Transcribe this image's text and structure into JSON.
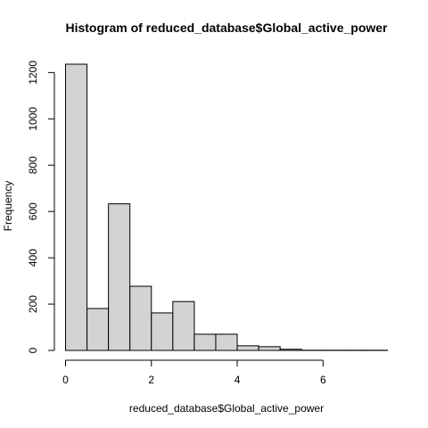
{
  "chart_data": {
    "type": "bar",
    "title": "Histogram of reduced_database$Global_active_power",
    "xlabel": "reduced_database$Global_active_power",
    "ylabel": "Frequency",
    "bins": [
      {
        "start": 0.0,
        "end": 0.5,
        "count": 1236
      },
      {
        "start": 0.5,
        "end": 1.0,
        "count": 181
      },
      {
        "start": 1.0,
        "end": 1.5,
        "count": 633
      },
      {
        "start": 1.5,
        "end": 2.0,
        "count": 277
      },
      {
        "start": 2.0,
        "end": 2.5,
        "count": 162
      },
      {
        "start": 2.5,
        "end": 3.0,
        "count": 211
      },
      {
        "start": 3.0,
        "end": 3.5,
        "count": 70
      },
      {
        "start": 3.5,
        "end": 4.0,
        "count": 70
      },
      {
        "start": 4.0,
        "end": 4.5,
        "count": 20
      },
      {
        "start": 4.5,
        "end": 5.0,
        "count": 16
      },
      {
        "start": 5.0,
        "end": 5.5,
        "count": 5
      },
      {
        "start": 5.5,
        "end": 6.0,
        "count": 1
      },
      {
        "start": 6.0,
        "end": 6.5,
        "count": 1
      },
      {
        "start": 6.5,
        "end": 7.0,
        "count": 1
      },
      {
        "start": 7.0,
        "end": 7.5,
        "count": 1
      }
    ],
    "xlim": [
      0,
      7.5
    ],
    "ylim": [
      0,
      1236
    ],
    "x_ticks": [
      0,
      2,
      4,
      6
    ],
    "x_tick_labels": [
      "0",
      "2",
      "4",
      "6"
    ],
    "y_ticks": [
      0,
      200,
      400,
      600,
      800,
      1000,
      1200
    ],
    "y_tick_labels": [
      "0",
      "200",
      "400",
      "600",
      "800",
      "1000",
      "1200"
    ],
    "bar_color": "#d3d3d3",
    "bar_border_color": "#000000",
    "grid": false,
    "legend": "none"
  }
}
